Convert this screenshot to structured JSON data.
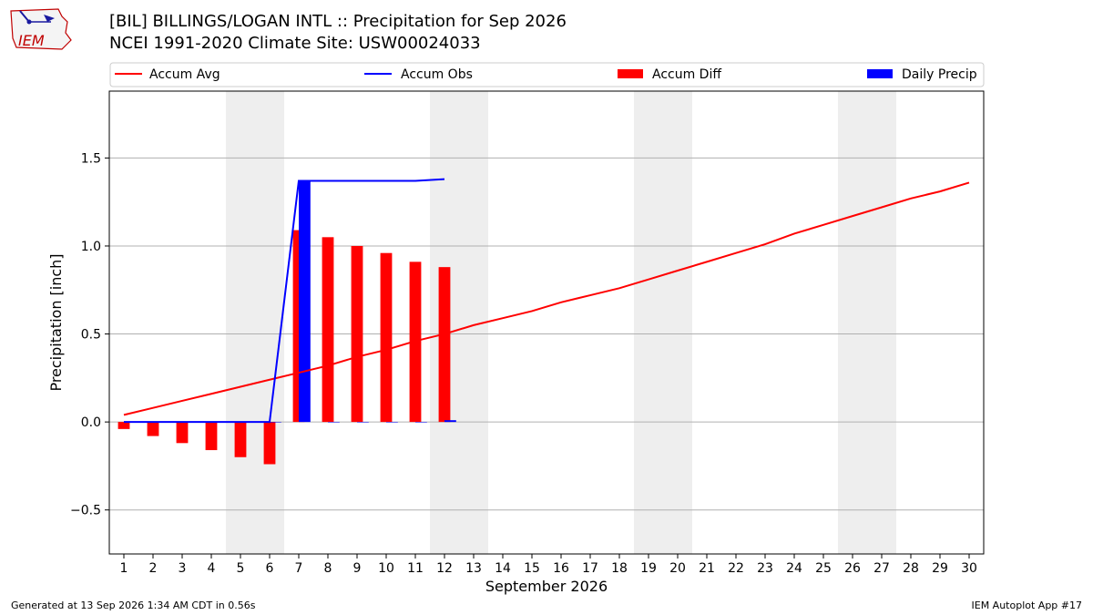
{
  "header": {
    "title_line1": "[BIL] BILLINGS/LOGAN INTL :: Precipitation for Sep 2026",
    "title_line2": "NCEI 1991-2020 Climate Site: USW00024033"
  },
  "logo": {
    "text": "IEM",
    "color": "#c00000"
  },
  "footer": {
    "left": "Generated at 13 Sep 2026 1:34 AM CDT in 0.56s",
    "right": "IEM Autoplot App #17"
  },
  "colors": {
    "avg": "#ff0000",
    "obs": "#0000ff",
    "diff": "#ff0000",
    "daily": "#0000ff",
    "weekend": "#eeeeee",
    "grid": "#b0b0b0"
  },
  "chart_data": {
    "type": "bar",
    "xlabel": "September 2026",
    "ylabel": "Precipitation [inch]",
    "xlim": [
      0.5,
      30.5
    ],
    "ylim": [
      -0.75,
      1.88
    ],
    "yticks": [
      -0.5,
      0.0,
      0.5,
      1.0,
      1.5
    ],
    "ytick_labels": [
      "−0.5",
      "0.0",
      "0.5",
      "1.0",
      "1.5"
    ],
    "grid": "horizontal",
    "legend_position": "top",
    "legend": [
      "Accum Avg",
      "Accum Obs",
      "Accum Diff",
      "Daily Precip"
    ],
    "days": [
      1,
      2,
      3,
      4,
      5,
      6,
      7,
      8,
      9,
      10,
      11,
      12,
      13,
      14,
      15,
      16,
      17,
      18,
      19,
      20,
      21,
      22,
      23,
      24,
      25,
      26,
      27,
      28,
      29,
      30
    ],
    "weekend_days": [
      5,
      6,
      12,
      13,
      19,
      20,
      26,
      27
    ],
    "series": [
      {
        "name": "Accum Avg",
        "kind": "line",
        "values": [
          0.04,
          0.08,
          0.12,
          0.16,
          0.2,
          0.24,
          0.28,
          0.32,
          0.37,
          0.41,
          0.46,
          0.5,
          0.55,
          0.59,
          0.63,
          0.68,
          0.72,
          0.76,
          0.81,
          0.86,
          0.91,
          0.96,
          1.01,
          1.07,
          1.12,
          1.17,
          1.22,
          1.27,
          1.31,
          1.36
        ]
      },
      {
        "name": "Accum Obs",
        "kind": "line",
        "values": [
          0.0,
          0.0,
          0.0,
          0.0,
          0.0,
          0.0,
          1.37,
          1.37,
          1.37,
          1.37,
          1.37,
          1.38
        ]
      },
      {
        "name": "Accum Diff",
        "kind": "bar",
        "values": [
          -0.04,
          -0.08,
          -0.12,
          -0.16,
          -0.2,
          -0.24,
          1.09,
          1.05,
          1.0,
          0.96,
          0.91,
          0.88
        ]
      },
      {
        "name": "Daily Precip",
        "kind": "bar",
        "values": [
          0.0,
          0.0,
          0.0,
          0.0,
          0.0,
          0.0,
          1.37,
          0.0,
          0.0,
          0.0,
          0.0,
          0.01
        ]
      }
    ]
  }
}
